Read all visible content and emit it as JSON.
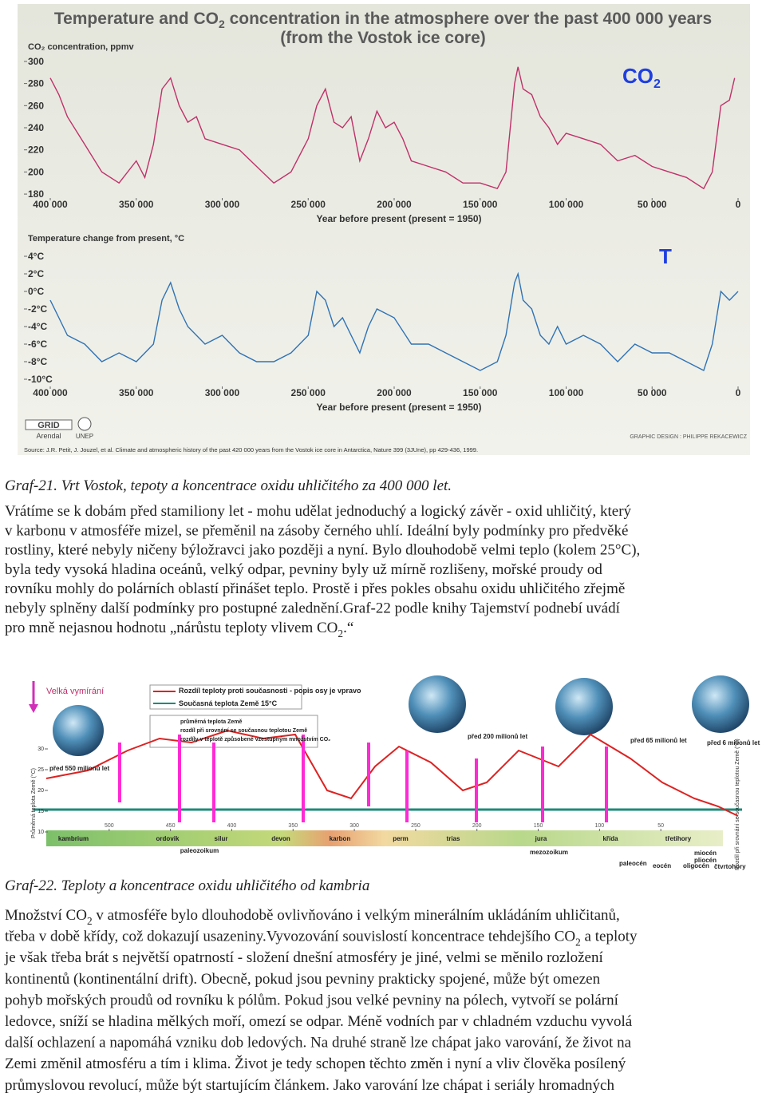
{
  "figure1": {
    "title_line1": "Temperature and CO",
    "title_sub": "2",
    "title_line1_end": " concentration in the atmosphere over the past 400 000 years",
    "title_line2": "(from the Vostok ice core)",
    "co2_chart": {
      "type": "line",
      "label": "CO",
      "label_sub": "2",
      "y_label": "CO₂ concentration, ppmv",
      "x_label": "Year before present (present = 1950)",
      "xlim": [
        400000,
        0
      ],
      "xticks": [
        {
          "value": 400000,
          "label": "400 000"
        },
        {
          "value": 350000,
          "label": "350 000"
        },
        {
          "value": 300000,
          "label": "300 000"
        },
        {
          "value": 250000,
          "label": "250 000"
        },
        {
          "value": 200000,
          "label": "200 000"
        },
        {
          "value": 150000,
          "label": "150 000"
        },
        {
          "value": 100000,
          "label": "100 000"
        },
        {
          "value": 50000,
          "label": "50 000"
        },
        0
      ],
      "ylim": [
        175,
        305
      ],
      "yticks": [
        300,
        280,
        260,
        240,
        220,
        200,
        180
      ],
      "series": [
        {
          "color": "#c0306a",
          "x": [
            400000,
            395000,
            390000,
            380000,
            370000,
            360000,
            350000,
            345000,
            340000,
            335000,
            330000,
            325000,
            320000,
            315000,
            310000,
            300000,
            290000,
            280000,
            270000,
            260000,
            250000,
            245000,
            240000,
            235000,
            230000,
            225000,
            220000,
            215000,
            210000,
            205000,
            200000,
            195000,
            190000,
            180000,
            170000,
            160000,
            150000,
            140000,
            135000,
            130000,
            128000,
            125000,
            120000,
            115000,
            110000,
            105000,
            100000,
            90000,
            80000,
            70000,
            60000,
            50000,
            40000,
            30000,
            20000,
            15000,
            10000,
            5000,
            2000
          ],
          "values": [
            285,
            270,
            250,
            225,
            200,
            190,
            210,
            195,
            225,
            275,
            285,
            260,
            245,
            250,
            230,
            225,
            220,
            205,
            190,
            200,
            230,
            260,
            275,
            245,
            240,
            250,
            210,
            230,
            255,
            240,
            245,
            230,
            210,
            205,
            200,
            190,
            190,
            185,
            200,
            280,
            295,
            275,
            270,
            250,
            240,
            225,
            235,
            230,
            225,
            210,
            215,
            205,
            200,
            195,
            185,
            200,
            260,
            265,
            285
          ]
        }
      ]
    },
    "temp_chart": {
      "type": "line",
      "label": "T",
      "y_label": "Temperature change from present, °C",
      "x_label": "Year before present (present = 1950)",
      "xlim": [
        400000,
        0
      ],
      "xticks": [
        {
          "value": 400000,
          "label": "400 000"
        },
        {
          "value": 350000,
          "label": "350 000"
        },
        {
          "value": 300000,
          "label": "300 000"
        },
        {
          "value": 250000,
          "label": "250 000"
        },
        {
          "value": 200000,
          "label": "200 000"
        },
        {
          "value": 150000,
          "label": "150 000"
        },
        {
          "value": 100000,
          "label": "100 000"
        },
        {
          "value": 50000,
          "label": "50 000"
        },
        0
      ],
      "ylim": [
        -11,
        5
      ],
      "yticks": [
        {
          "value": 4,
          "label": "4°C"
        },
        {
          "value": 2,
          "label": "2°C"
        },
        {
          "value": 0,
          "label": "0°C"
        },
        {
          "value": -2,
          "label": "-2°C"
        },
        {
          "value": -4,
          "label": "-4°C"
        },
        {
          "value": -6,
          "label": "-6°C"
        },
        {
          "value": -8,
          "label": "-8°C"
        },
        {
          "value": -10,
          "label": "-10°C"
        }
      ],
      "series": [
        {
          "color": "#2f73b5",
          "x": [
            400000,
            395000,
            390000,
            380000,
            370000,
            360000,
            350000,
            340000,
            335000,
            330000,
            325000,
            320000,
            310000,
            300000,
            290000,
            280000,
            270000,
            260000,
            250000,
            245000,
            240000,
            235000,
            230000,
            220000,
            215000,
            210000,
            200000,
            190000,
            180000,
            170000,
            160000,
            150000,
            140000,
            135000,
            130000,
            128000,
            125000,
            120000,
            115000,
            110000,
            105000,
            100000,
            90000,
            80000,
            70000,
            60000,
            50000,
            40000,
            30000,
            20000,
            15000,
            10000,
            5000,
            0
          ],
          "values": [
            -1,
            -3,
            -5,
            -6,
            -8,
            -7,
            -8,
            -6,
            -1,
            1,
            -2,
            -4,
            -6,
            -5,
            -7,
            -8,
            -8,
            -7,
            -5,
            0,
            -1,
            -4,
            -3,
            -7,
            -4,
            -2,
            -3,
            -6,
            -6,
            -7,
            -8,
            -9,
            -8,
            -5,
            1,
            2,
            -1,
            -2,
            -5,
            -6,
            -4,
            -6,
            -5,
            -6,
            -8,
            -6,
            -7,
            -7,
            -8,
            -9,
            -6,
            0,
            -1,
            0
          ]
        }
      ]
    },
    "logo_grid": "GRID",
    "logo_arendal": "Arendal",
    "logo_unep": "UNEP",
    "credit": "GRAPHIC DESIGN : PHILIPPE REKACEWICZ",
    "source": "Source: J.R. Petit, J. Jouzel, et al. Climate and atmospheric history of the past 420 000 years from the Vostok ice core in Antarctica, Nature 399 (3JUne), pp 429-436, 1999."
  },
  "caption1": "Graf-21. Vrt Vostok, tepoty a koncentrace oxidu uhličitého za 400 000 let.",
  "paragraph1": [
    "Vrátíme se k dobám před stamiliony let - mohu udělat jednoduchý a  logický závěr - oxid uhličitý, který",
    "v karbonu v atmosféře mizel, se přeměnil na zásoby černého uhlí. Ideální byly podmínky pro předvěké",
    "rostliny, které nebyly ničeny býložravci jako později a nyní. Bylo dlouhodobě velmi teplo (kolem 25°C),",
    "byla tedy vysoká hladina oceánů, velký odpar, pevniny byly už mírně rozlišeny, mořské proudy od",
    "rovníku mohly do polárních oblastí přinášet teplo. Prostě i přes pokles obsahu oxidu uhličitého zřejmě",
    "nebyly splněny další podmínky pro postupné zalednění.Graf-22 podle knihy Tajemství podnebí uvádí",
    [
      "pro mně nejasnou hodnotu „nárůstu teploty vlivem CO",
      "2",
      ".“"
    ]
  ],
  "figure2": {
    "extinctions": "Velká vymírání",
    "legend": [
      "Rozdíl teploty proti současnosti - popis osy je vpravo",
      "Současná teplota Země  15°C",
      "průměrná teplota Země",
      "rozdíl při srovnání se současnou teplotou Země",
      "rozdíly v teplotě způsobené vzestupným množstvím CO₂"
    ],
    "ages": [
      "před 550 milionů let",
      "před 200 milionů let",
      "před 65 milionů let",
      "před 6 milionů let"
    ],
    "left_axis_label": "Průměrná teplota Země (°C)",
    "right_axis_label": "Rozdíl při srovnání se současnou teplotou Země (°C)",
    "left_ticks": [
      30,
      25,
      20,
      15,
      10
    ],
    "xlim": [
      550,
      0
    ],
    "xticks": [
      500,
      450,
      400,
      350,
      300,
      250,
      200,
      150,
      100,
      50
    ],
    "periods": [
      "kambrium",
      "ordovik",
      "silur",
      "devon",
      "karbon",
      "perm",
      "trias",
      "jura",
      "křída",
      "třetihory"
    ],
    "eras": [
      "paleozoikum",
      "mezozoikum"
    ],
    "epochs": [
      "paleocén",
      "eocén",
      "oligocén",
      "miocén",
      "pliocén",
      "čtvrtohory"
    ]
  },
  "caption2": "Graf-22. Teploty a koncentrace oxidu uhličitého od kambria",
  "paragraph2": [
    [
      "Množství CO",
      "2",
      " v atmosféře bylo dlouhodobě ovlivňováno i velkým minerálním ukládáním uhličitanů,"
    ],
    [
      "třeba v době křídy, což dokazují usazeniny.Vyvozování souvislostí koncentrace tehdejšího CO",
      "2",
      " a teploty"
    ],
    "je však třeba brát s největší opatrností - složení dnešní atmosféry je jiné, velmi se měnilo rozložení",
    "kontinentů (kontinentální drift). Obecně, pokud jsou pevniny prakticky spojené, může být omezen",
    "pohyb mořských proudů od rovníku k pólům. Pokud jsou velké pevniny na pólech, vytvoří se polární",
    "ledovce, sníží se hladina mělkých moří, omezí se odpar. Méně vodních par v chladném vzduchu vyvolá",
    "další ochlazení a napomáhá vzniku dob ledových. Na druhé straně lze chápat jako varování, že život na",
    "Zemi změnil atmosféru a tím i klima. Život je tedy schopen těchto změn i nyní a vliv člověka posílený",
    "průmyslovou revolucí, může být startujícím článkem. Jako varování lze chápat i seriály hromadných"
  ]
}
